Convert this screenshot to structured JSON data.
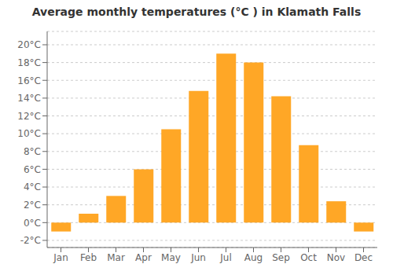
{
  "chart_data": {
    "type": "bar",
    "title": "Average monthly temperatures (°C ) in Klamath Falls",
    "categories": [
      "Jan",
      "Feb",
      "Mar",
      "Apr",
      "May",
      "Jun",
      "Jul",
      "Aug",
      "Sep",
      "Oct",
      "Nov",
      "Dec"
    ],
    "values": [
      -1.0,
      1.0,
      3.0,
      6.0,
      10.5,
      14.8,
      19.0,
      18.0,
      14.2,
      8.7,
      2.4,
      -1.0
    ],
    "color": "#FFA726",
    "ylim": [
      -2.8,
      21.5
    ],
    "yticks": [
      {
        "value": -2,
        "label": "-2°C"
      },
      {
        "value": 0,
        "label": "0°C"
      },
      {
        "value": 2,
        "label": "2°C"
      },
      {
        "value": 4,
        "label": "4°C"
      },
      {
        "value": 6,
        "label": "6°C"
      },
      {
        "value": 8,
        "label": "8°C"
      },
      {
        "value": 10,
        "label": "10°C"
      },
      {
        "value": 12,
        "label": "12°C"
      },
      {
        "value": 14,
        "label": "14°C"
      },
      {
        "value": 16,
        "label": "16°C"
      },
      {
        "value": 18,
        "label": "18°C"
      },
      {
        "value": 20,
        "label": "20°C"
      }
    ],
    "grid": true
  }
}
